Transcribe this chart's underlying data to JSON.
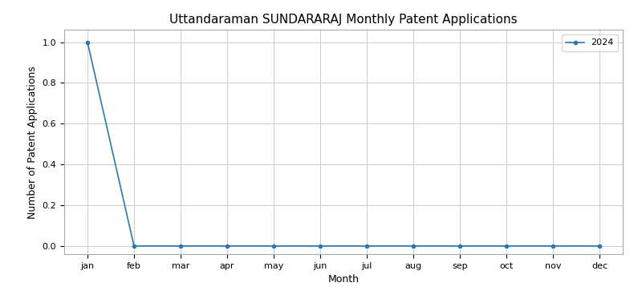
{
  "title": "Uttandaraman SUNDARARAJ Monthly Patent Applications",
  "xlabel": "Month",
  "ylabel": "Number of Patent Applications",
  "months": [
    "jan",
    "feb",
    "mar",
    "apr",
    "may",
    "jun",
    "jul",
    "aug",
    "sep",
    "oct",
    "nov",
    "dec"
  ],
  "series": {
    "2024": [
      1,
      0,
      0,
      0,
      0,
      0,
      0,
      0,
      0,
      0,
      0,
      0
    ]
  },
  "line_color": "#2878b5",
  "marker": "o",
  "marker_size": 3,
  "ylim": [
    -0.04,
    1.06
  ],
  "yticks": [
    0.0,
    0.2,
    0.4,
    0.6,
    0.8,
    1.0
  ],
  "grid_color": "#cccccc",
  "background_color": "#ffffff",
  "title_fontsize": 11,
  "axis_label_fontsize": 9,
  "tick_fontsize": 8,
  "legend_fontsize": 8
}
